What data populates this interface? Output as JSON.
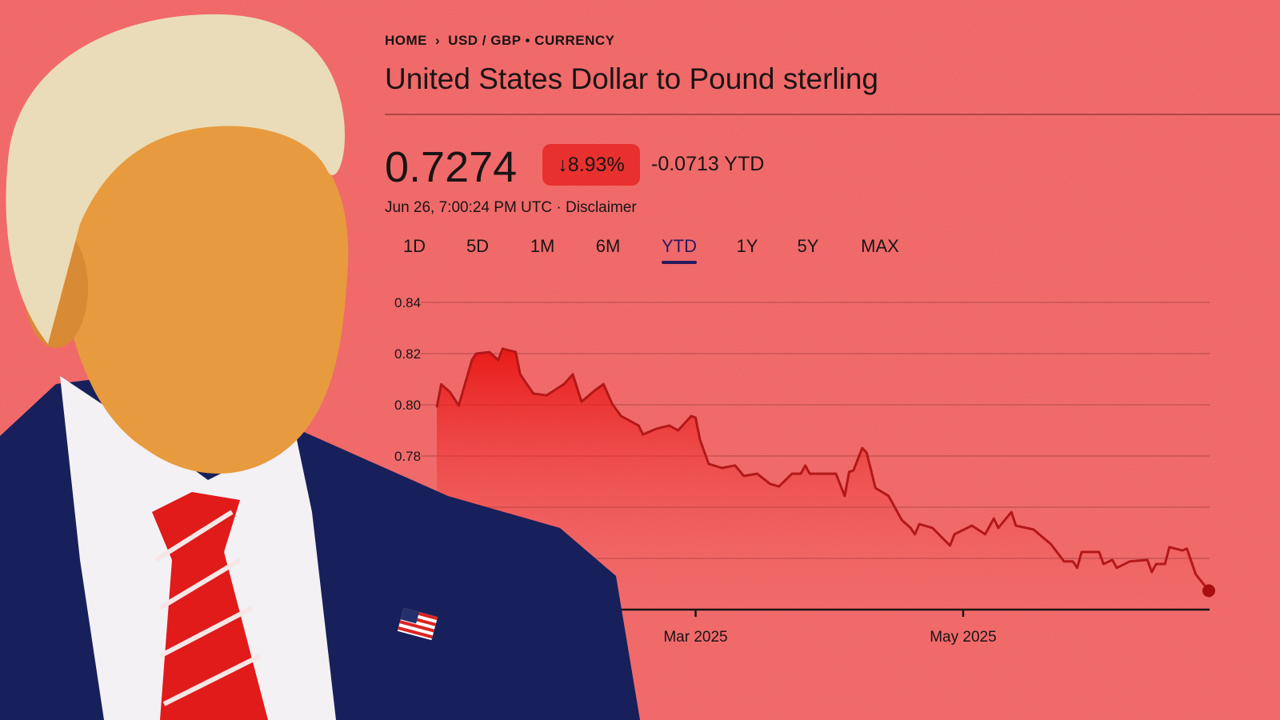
{
  "breadcrumb": {
    "home": "HOME",
    "separator_icon": "chevron-right-icon",
    "current": "USD / GBP • CURRENCY"
  },
  "title": "United States Dollar to Pound sterling",
  "quote": {
    "price": "0.7274",
    "change_percent": "8.93%",
    "change_direction_icon": "arrow-down-icon",
    "change_abs": "-0.0713 YTD",
    "timestamp": "Jun 26, 7:00:24 PM UTC",
    "separator": "·",
    "disclaimer": "Disclaimer"
  },
  "tabs": [
    {
      "label": "1D"
    },
    {
      "label": "5D"
    },
    {
      "label": "1M"
    },
    {
      "label": "6M"
    },
    {
      "label": "YTD",
      "active": true
    },
    {
      "label": "1Y"
    },
    {
      "label": "5Y"
    },
    {
      "label": "MAX"
    }
  ],
  "colors": {
    "background": "#ef5b5b",
    "line": "#b31818",
    "fill": "#e8120f",
    "badge": "#e8312e",
    "active_tab": "#2a1a5e"
  },
  "chart_data": {
    "type": "area",
    "title": "",
    "xlabel": "",
    "ylabel": "",
    "xlim": [
      "2025-01-01",
      "2025-06-26"
    ],
    "ylim": [
      0.72,
      0.84
    ],
    "yticks": [
      "0.84",
      "0.82",
      "0.80",
      "0.78"
    ],
    "ytick_values": [
      0.84,
      0.82,
      0.8,
      0.78
    ],
    "gridline_values": [
      0.84,
      0.82,
      0.8,
      0.78,
      0.76,
      0.74
    ],
    "xticks": [
      {
        "label": "Mar 2025",
        "date": "2025-03-01"
      },
      {
        "label": "May 2025",
        "date": "2025-05-01"
      }
    ],
    "grid": true,
    "end_marker": true,
    "series": [
      {
        "points": [
          [
            "2025-01-01",
            0.799
          ],
          [
            "2025-01-02",
            0.808
          ],
          [
            "2025-01-04",
            0.805
          ],
          [
            "2025-01-06",
            0.7997
          ],
          [
            "2025-01-09",
            0.8175
          ],
          [
            "2025-01-10",
            0.82
          ],
          [
            "2025-01-13",
            0.8206
          ],
          [
            "2025-01-15",
            0.8175
          ],
          [
            "2025-01-16",
            0.8219
          ],
          [
            "2025-01-19",
            0.8206
          ],
          [
            "2025-01-20",
            0.8119
          ],
          [
            "2025-01-23",
            0.8044
          ],
          [
            "2025-01-26",
            0.8037
          ],
          [
            "2025-01-30",
            0.8081
          ],
          [
            "2025-02-01",
            0.8119
          ],
          [
            "2025-02-03",
            0.8012
          ],
          [
            "2025-02-06",
            0.8056
          ],
          [
            "2025-02-08",
            0.8081
          ],
          [
            "2025-02-10",
            0.8003
          ],
          [
            "2025-02-12",
            0.7956
          ],
          [
            "2025-02-16",
            0.7919
          ],
          [
            "2025-02-17",
            0.7884
          ],
          [
            "2025-02-20",
            0.7906
          ],
          [
            "2025-02-23",
            0.7919
          ],
          [
            "2025-02-25",
            0.79
          ],
          [
            "2025-02-28",
            0.7956
          ],
          [
            "2025-03-01",
            0.795
          ],
          [
            "2025-03-02",
            0.7863
          ],
          [
            "2025-03-04",
            0.7769
          ],
          [
            "2025-03-07",
            0.7753
          ],
          [
            "2025-03-10",
            0.7763
          ],
          [
            "2025-03-12",
            0.7722
          ],
          [
            "2025-03-15",
            0.7731
          ],
          [
            "2025-03-18",
            0.7691
          ],
          [
            "2025-03-20",
            0.7681
          ],
          [
            "2025-03-23",
            0.7731
          ],
          [
            "2025-03-25",
            0.7731
          ],
          [
            "2025-03-26",
            0.7763
          ],
          [
            "2025-03-27",
            0.7731
          ],
          [
            "2025-04-02",
            0.7731
          ],
          [
            "2025-04-04",
            0.7644
          ],
          [
            "2025-04-05",
            0.7738
          ],
          [
            "2025-04-06",
            0.7744
          ],
          [
            "2025-04-08",
            0.7831
          ],
          [
            "2025-04-09",
            0.7813
          ],
          [
            "2025-04-11",
            0.7675
          ],
          [
            "2025-04-14",
            0.7644
          ],
          [
            "2025-04-17",
            0.755
          ],
          [
            "2025-04-19",
            0.7519
          ],
          [
            "2025-04-20",
            0.7494
          ],
          [
            "2025-04-21",
            0.7534
          ],
          [
            "2025-04-24",
            0.7519
          ],
          [
            "2025-04-28",
            0.745
          ],
          [
            "2025-04-29",
            0.7494
          ],
          [
            "2025-05-03",
            0.7528
          ],
          [
            "2025-05-06",
            0.7494
          ],
          [
            "2025-05-08",
            0.7556
          ],
          [
            "2025-05-09",
            0.7519
          ],
          [
            "2025-05-12",
            0.7581
          ],
          [
            "2025-05-13",
            0.7528
          ],
          [
            "2025-05-17",
            0.7513
          ],
          [
            "2025-05-21",
            0.7456
          ],
          [
            "2025-05-24",
            0.7388
          ],
          [
            "2025-05-26",
            0.7388
          ],
          [
            "2025-05-27",
            0.7363
          ],
          [
            "2025-05-28",
            0.7425
          ],
          [
            "2025-06-01",
            0.7425
          ],
          [
            "2025-06-02",
            0.7378
          ],
          [
            "2025-06-04",
            0.7394
          ],
          [
            "2025-06-05",
            0.7363
          ],
          [
            "2025-06-08",
            0.7388
          ],
          [
            "2025-06-12",
            0.7394
          ],
          [
            "2025-06-13",
            0.7347
          ],
          [
            "2025-06-14",
            0.7378
          ],
          [
            "2025-06-16",
            0.7378
          ],
          [
            "2025-06-17",
            0.7444
          ],
          [
            "2025-06-20",
            0.7431
          ],
          [
            "2025-06-21",
            0.7438
          ],
          [
            "2025-06-23",
            0.7338
          ],
          [
            "2025-06-26",
            0.7274
          ]
        ]
      }
    ]
  }
}
